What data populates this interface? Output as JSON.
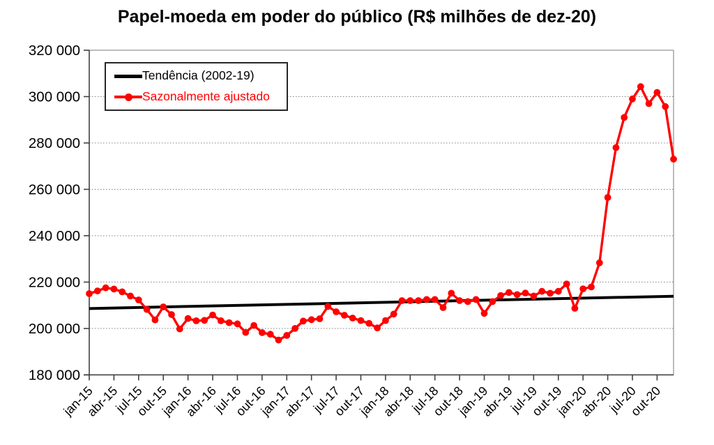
{
  "title": "Papel-moeda em poder do público (R$ milhões de dez-20)",
  "colors": {
    "series": "#ff0000",
    "trend": "#000000",
    "axis": "#404040",
    "plot_border": "#a6a6a6",
    "gridline": "#808080",
    "tick_label": "#000000",
    "background": "#ffffff"
  },
  "legend": {
    "items": [
      {
        "label": "Tendência (2002-19)",
        "color": "#000000",
        "marker": "line"
      },
      {
        "label": "Sazonalmente ajustado",
        "color": "#ff0000",
        "marker": "line-dot"
      }
    ]
  },
  "chart_data": {
    "type": "line",
    "title": "Papel-moeda em poder do público (R$ milhões de dez-20)",
    "ylim": [
      180000,
      320000
    ],
    "y_ticks": [
      180000,
      200000,
      220000,
      240000,
      260000,
      280000,
      300000,
      320000
    ],
    "y_tick_labels": [
      "180 000",
      "200 000",
      "220 000",
      "240 000",
      "260 000",
      "280 000",
      "300 000",
      "320 000"
    ],
    "x_tick_labels": [
      "jan-15",
      "abr-15",
      "jul-15",
      "out-15",
      "jan-16",
      "abr-16",
      "jul-16",
      "out-16",
      "jan-17",
      "abr-17",
      "jul-17",
      "out-17",
      "jan-18",
      "abr-18",
      "jul-18",
      "out-18",
      "jan-19",
      "abr-19",
      "jul-19",
      "out-19",
      "jan-20",
      "abr-20",
      "jul-20",
      "out-20"
    ],
    "x_tick_every": 3,
    "grid": "horizontal-dotted",
    "legend_position": "top-left-inside",
    "months": [
      "jan-15",
      "fev-15",
      "mar-15",
      "abr-15",
      "mai-15",
      "jun-15",
      "jul-15",
      "ago-15",
      "set-15",
      "out-15",
      "nov-15",
      "dez-15",
      "jan-16",
      "fev-16",
      "mar-16",
      "abr-16",
      "mai-16",
      "jun-16",
      "jul-16",
      "ago-16",
      "set-16",
      "out-16",
      "nov-16",
      "dez-16",
      "jan-17",
      "fev-17",
      "mar-17",
      "abr-17",
      "mai-17",
      "jun-17",
      "jul-17",
      "ago-17",
      "set-17",
      "out-17",
      "nov-17",
      "dez-17",
      "jan-18",
      "fev-18",
      "mar-18",
      "abr-18",
      "mai-18",
      "jun-18",
      "jul-18",
      "ago-18",
      "set-18",
      "out-18",
      "nov-18",
      "dez-18",
      "jan-19",
      "fev-19",
      "mar-19",
      "abr-19",
      "mai-19",
      "jun-19",
      "jul-19",
      "ago-19",
      "set-19",
      "out-19",
      "nov-19",
      "dez-19",
      "jan-20",
      "fev-20",
      "mar-20",
      "abr-20",
      "mai-20",
      "jun-20",
      "jul-20",
      "ago-20",
      "set-20",
      "out-20",
      "nov-20",
      "dez-20"
    ],
    "series": [
      {
        "name": "Tendência (2002-19)",
        "type": "linear",
        "start_value": 208600,
        "end_value": 213900
      },
      {
        "name": "Sazonalmente ajustado",
        "type": "line-markers",
        "values": [
          215000,
          216200,
          217500,
          217000,
          215800,
          214000,
          212300,
          208200,
          203700,
          209300,
          206000,
          199800,
          204300,
          203300,
          203500,
          205800,
          203300,
          202500,
          202000,
          198300,
          201300,
          198200,
          197500,
          195000,
          197000,
          200000,
          203200,
          203800,
          204200,
          209500,
          207200,
          205700,
          204500,
          203400,
          202200,
          200200,
          203400,
          206200,
          212000,
          212000,
          212000,
          212500,
          212500,
          209000,
          215200,
          212000,
          211600,
          212500,
          206500,
          211600,
          214200,
          215500,
          214600,
          215300,
          214000,
          216000,
          215200,
          216000,
          219200,
          208700,
          217100,
          217900,
          228300,
          256500,
          278000,
          291000,
          299000,
          304300,
          297000,
          301800,
          295700,
          273000
        ]
      }
    ]
  }
}
